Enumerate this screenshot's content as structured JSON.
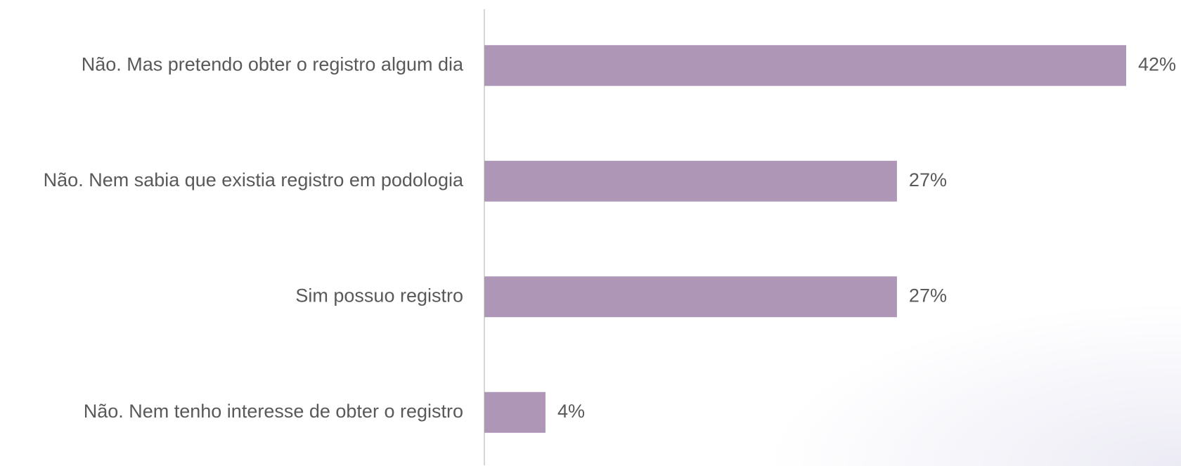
{
  "chart_data": {
    "type": "bar",
    "orientation": "horizontal",
    "categories": [
      "Não. Mas pretendo obter o registro algum dia",
      "Não. Nem sabia que existia registro em podologia",
      "Sim possuo registro",
      "Não. Nem tenho interesse de obter o registro"
    ],
    "values": [
      42,
      27,
      27,
      4
    ],
    "value_labels": [
      "42%",
      "27%",
      "27%",
      "4%"
    ],
    "color": "#ae96b7"
  }
}
